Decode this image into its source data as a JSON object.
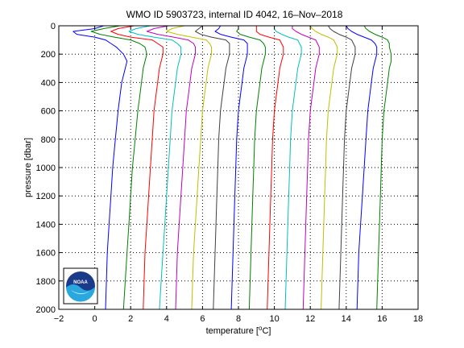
{
  "chart_data": {
    "type": "line",
    "title": "WMO ID 5903723, internal ID 4042, 16–Nov–2018",
    "xlabel_parts": [
      "temperature [",
      "o",
      "C]"
    ],
    "ylabel": "pressure [dbar]",
    "xlim": [
      -2,
      18
    ],
    "ylim": [
      0,
      2000
    ],
    "y_reversed": true,
    "grid": true,
    "grid_style": "dotted",
    "xticks": [
      -2,
      0,
      2,
      4,
      6,
      8,
      10,
      12,
      14,
      16,
      18
    ],
    "yticks": [
      0,
      200,
      400,
      600,
      800,
      1000,
      1200,
      1400,
      1600,
      1800,
      2000
    ],
    "pressure_levels": [
      0,
      20,
      40,
      60,
      80,
      100,
      125,
      150,
      200,
      250,
      300,
      400,
      500,
      600,
      800,
      1000,
      1200,
      1400,
      1600,
      1800,
      2000
    ],
    "series": [
      {
        "color": "#0000ff",
        "temps": [
          0.5,
          0.0,
          -1.2,
          -1.0,
          0.0,
          0.6,
          0.9,
          1.2,
          1.6,
          1.8,
          1.7,
          1.5,
          1.4,
          1.3,
          1.15,
          1.0,
          0.9,
          0.8,
          0.7,
          0.65,
          0.6
        ]
      },
      {
        "color": "#008000",
        "temps": [
          1.4,
          0.5,
          -0.2,
          0.3,
          1.1,
          2.0,
          2.5,
          2.8,
          2.9,
          2.8,
          2.7,
          2.6,
          2.5,
          2.4,
          2.25,
          2.1,
          2.0,
          1.9,
          1.8,
          1.7,
          1.6
        ]
      },
      {
        "color": "#ff0000",
        "temps": [
          2.2,
          1.3,
          0.9,
          1.3,
          2.0,
          3.2,
          3.5,
          3.8,
          3.8,
          3.7,
          3.6,
          3.5,
          3.4,
          3.3,
          3.2,
          3.1,
          3.0,
          2.9,
          2.8,
          2.75,
          2.7
        ]
      },
      {
        "color": "#00bfbf",
        "temps": [
          3.1,
          2.3,
          1.9,
          2.4,
          3.3,
          4.3,
          4.6,
          4.8,
          4.8,
          4.7,
          4.6,
          4.5,
          4.4,
          4.3,
          4.2,
          4.1,
          4.0,
          3.9,
          3.8,
          3.7,
          3.6
        ]
      },
      {
        "color": "#bf00bf",
        "temps": [
          4.1,
          3.3,
          2.9,
          3.5,
          4.4,
          5.2,
          5.5,
          5.6,
          5.6,
          5.5,
          5.4,
          5.3,
          5.2,
          5.1,
          5.0,
          4.9,
          4.8,
          4.7,
          4.6,
          4.55,
          4.5
        ]
      },
      {
        "color": "#bfbf00",
        "temps": [
          5.0,
          4.3,
          4.0,
          4.6,
          5.4,
          6.2,
          6.4,
          6.5,
          6.5,
          6.4,
          6.3,
          6.2,
          6.1,
          6.0,
          5.9,
          5.8,
          5.7,
          5.6,
          5.5,
          5.45,
          5.4
        ]
      },
      {
        "color": "#404040",
        "temps": [
          6.0,
          5.8,
          5.6,
          5.9,
          6.5,
          7.3,
          7.5,
          7.5,
          7.5,
          7.4,
          7.3,
          7.2,
          7.1,
          7.0,
          6.9,
          6.85,
          6.8,
          6.75,
          6.7,
          6.65,
          6.6
        ]
      },
      {
        "color": "#0000ff",
        "temps": [
          7.0,
          6.9,
          6.7,
          7.0,
          7.6,
          8.3,
          8.5,
          8.5,
          8.5,
          8.4,
          8.3,
          8.2,
          8.1,
          8.0,
          7.9,
          7.85,
          7.8,
          7.75,
          7.7,
          7.65,
          7.6
        ]
      },
      {
        "color": "#008000",
        "temps": [
          8.0,
          8.0,
          7.9,
          8.1,
          8.6,
          9.2,
          9.4,
          9.5,
          9.5,
          9.4,
          9.3,
          9.2,
          9.1,
          9.0,
          8.9,
          8.85,
          8.8,
          8.75,
          8.7,
          8.65,
          8.6
        ]
      },
      {
        "color": "#ff0000",
        "temps": [
          9.0,
          9.0,
          9.0,
          9.2,
          9.7,
          10.3,
          10.4,
          10.5,
          10.5,
          10.4,
          10.3,
          10.2,
          10.1,
          10.0,
          9.9,
          9.85,
          9.8,
          9.75,
          9.7,
          9.65,
          9.6
        ]
      },
      {
        "color": "#00bfbf",
        "temps": [
          10.0,
          10.0,
          10.1,
          10.4,
          10.8,
          11.3,
          11.4,
          11.5,
          11.5,
          11.4,
          11.3,
          11.2,
          11.1,
          11.0,
          10.9,
          10.85,
          10.8,
          10.75,
          10.7,
          10.65,
          10.6
        ]
      },
      {
        "color": "#bf00bf",
        "temps": [
          11.0,
          11.0,
          11.2,
          11.5,
          11.9,
          12.3,
          12.4,
          12.5,
          12.5,
          12.4,
          12.3,
          12.2,
          12.1,
          12.0,
          11.9,
          11.85,
          11.8,
          11.75,
          11.7,
          11.65,
          11.6
        ]
      },
      {
        "color": "#bfbf00",
        "temps": [
          12.0,
          12.1,
          12.3,
          12.6,
          13.0,
          13.3,
          13.4,
          13.5,
          13.5,
          13.4,
          13.3,
          13.2,
          13.1,
          13.0,
          12.9,
          12.85,
          12.8,
          12.75,
          12.7,
          12.65,
          12.6
        ]
      },
      {
        "color": "#404040",
        "temps": [
          13.0,
          13.1,
          13.3,
          13.6,
          14.0,
          14.3,
          14.4,
          14.5,
          14.5,
          14.4,
          14.3,
          14.2,
          14.1,
          14.0,
          13.9,
          13.85,
          13.8,
          13.75,
          13.7,
          13.65,
          13.6
        ]
      },
      {
        "color": "#0000ff",
        "temps": [
          14.0,
          14.1,
          14.3,
          14.6,
          15.0,
          15.4,
          15.6,
          15.7,
          15.7,
          15.6,
          15.5,
          15.4,
          15.3,
          15.2,
          15.1,
          15.0,
          14.9,
          14.8,
          14.7,
          14.65,
          14.6
        ]
      },
      {
        "color": "#008000",
        "temps": [
          15.0,
          15.1,
          15.3,
          15.6,
          16.0,
          16.3,
          16.4,
          16.4,
          16.5,
          16.5,
          16.4,
          16.3,
          16.2,
          16.1,
          16.0,
          15.95,
          15.9,
          15.85,
          15.8,
          15.75,
          15.7
        ]
      }
    ]
  },
  "logo": {
    "text": "NOAA",
    "name": "noaa-logo"
  }
}
